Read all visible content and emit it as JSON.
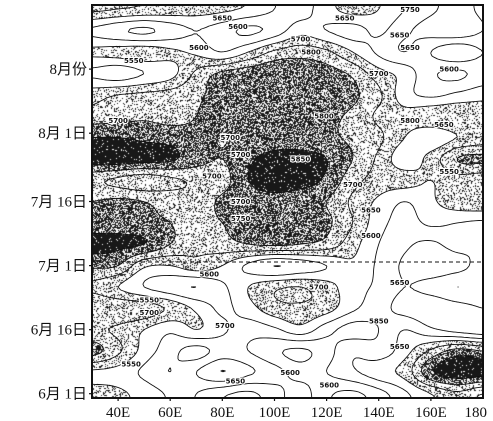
{
  "chart_data": {
    "type": "heatmap",
    "grid": false,
    "xlim": [
      30,
      180
    ],
    "ylim": [
      "05-31",
      "08-31"
    ],
    "xticks": [
      {
        "value": 40,
        "label": "40E"
      },
      {
        "value": 60,
        "label": "60E"
      },
      {
        "value": 80,
        "label": "80E"
      },
      {
        "value": 100,
        "label": "100E"
      },
      {
        "value": 120,
        "label": "120E"
      },
      {
        "value": 140,
        "label": "140E"
      },
      {
        "value": 160,
        "label": "160E"
      },
      {
        "value": 180,
        "label": "180"
      }
    ],
    "yticks": [
      {
        "value": "06-01",
        "label": "6月 1日"
      },
      {
        "value": "06-16",
        "label": "6月 16日"
      },
      {
        "value": "07-01",
        "label": "7月 1日"
      },
      {
        "value": "07-16",
        "label": "7月 16日"
      },
      {
        "value": "08-01",
        "label": "8月 1日"
      },
      {
        "value": "08-16",
        "label": "8月份"
      }
    ],
    "contour_levels": [
      5500,
      5550,
      5600,
      5650,
      5700,
      5750,
      5800,
      5850
    ],
    "shading_levels": [
      5700,
      5800,
      5850
    ],
    "lon": [
      30,
      40,
      50,
      60,
      70,
      80,
      90,
      100,
      110,
      120,
      130,
      140,
      150,
      160,
      170,
      180
    ],
    "dates": [
      "06-01",
      "06-06",
      "06-11",
      "06-16",
      "06-21",
      "06-26",
      "07-01",
      "07-06",
      "07-11",
      "07-16",
      "07-21",
      "07-26",
      "07-31",
      "08-05",
      "08-10",
      "08-15",
      "08-20",
      "08-25",
      "08-30"
    ],
    "values": [
      [
        5720,
        5710,
        5680,
        5640,
        5600,
        5560,
        5540,
        5580,
        5620,
        5560,
        5540,
        5580,
        5640,
        5700,
        5740,
        5700
      ],
      [
        5690,
        5680,
        5640,
        5600,
        5650,
        5700,
        5660,
        5620,
        5580,
        5600,
        5640,
        5680,
        5720,
        5840,
        5880,
        5870
      ],
      [
        5820,
        5760,
        5680,
        5620,
        5580,
        5620,
        5600,
        5560,
        5540,
        5580,
        5640,
        5620,
        5680,
        5760,
        5820,
        5800
      ],
      [
        5760,
        5740,
        5700,
        5660,
        5700,
        5660,
        5620,
        5640,
        5680,
        5620,
        5580,
        5600,
        5650,
        5610,
        5580,
        5560
      ],
      [
        5800,
        5790,
        5780,
        5740,
        5690,
        5640,
        5680,
        5730,
        5740,
        5720,
        5660,
        5620,
        5580,
        5560,
        5580,
        5600
      ],
      [
        5740,
        5700,
        5650,
        5620,
        5600,
        5640,
        5700,
        5740,
        5750,
        5720,
        5670,
        5640,
        5600,
        5620,
        5650,
        5630
      ],
      [
        5810,
        5800,
        5710,
        5700,
        5730,
        5700,
        5640,
        5600,
        5620,
        5650,
        5690,
        5640,
        5590,
        5560,
        5580,
        5620
      ],
      [
        5870,
        5860,
        5850,
        5800,
        5760,
        5780,
        5800,
        5810,
        5800,
        5780,
        5720,
        5650,
        5610,
        5590,
        5620,
        5600
      ],
      [
        5820,
        5830,
        5810,
        5800,
        5780,
        5800,
        5820,
        5830,
        5830,
        5810,
        5750,
        5670,
        5630,
        5660,
        5650,
        5640
      ],
      [
        5800,
        5810,
        5800,
        5780,
        5770,
        5810,
        5820,
        5830,
        5820,
        5800,
        5740,
        5690,
        5650,
        5690,
        5730,
        5740
      ],
      [
        5760,
        5740,
        5720,
        5740,
        5760,
        5780,
        5850,
        5880,
        5870,
        5840,
        5770,
        5730,
        5720,
        5700,
        5730,
        5720
      ],
      [
        5880,
        5880,
        5870,
        5860,
        5820,
        5800,
        5840,
        5870,
        5870,
        5850,
        5800,
        5740,
        5670,
        5720,
        5800,
        5810
      ],
      [
        5850,
        5850,
        5840,
        5830,
        5810,
        5800,
        5810,
        5820,
        5820,
        5810,
        5790,
        5760,
        5700,
        5660,
        5700,
        5720
      ],
      [
        5770,
        5780,
        5790,
        5780,
        5800,
        5820,
        5830,
        5830,
        5820,
        5810,
        5790,
        5740,
        5720,
        5740,
        5750,
        5740
      ],
      [
        5730,
        5750,
        5760,
        5770,
        5790,
        5820,
        5830,
        5840,
        5840,
        5830,
        5810,
        5760,
        5670,
        5640,
        5660,
        5680
      ],
      [
        5640,
        5620,
        5650,
        5680,
        5760,
        5810,
        5830,
        5840,
        5830,
        5820,
        5790,
        5720,
        5680,
        5610,
        5590,
        5620
      ],
      [
        5710,
        5720,
        5730,
        5710,
        5690,
        5650,
        5700,
        5760,
        5780,
        5760,
        5700,
        5640,
        5600,
        5650,
        5690,
        5650
      ],
      [
        5640,
        5610,
        5590,
        5620,
        5650,
        5620,
        5590,
        5620,
        5680,
        5650,
        5630,
        5660,
        5610,
        5580,
        5560,
        5600
      ],
      [
        5760,
        5750,
        5740,
        5730,
        5720,
        5710,
        5690,
        5650,
        5630,
        5680,
        5720,
        5700,
        5650,
        5610,
        5580,
        5610
      ]
    ],
    "contour_labels": [
      {
        "text": "5650",
        "lon": 80,
        "date": "08-28"
      },
      {
        "text": "5600",
        "lon": 86,
        "date": "08-26"
      },
      {
        "text": "5650",
        "lon": 127,
        "date": "08-28"
      },
      {
        "text": "5750",
        "lon": 152,
        "date": "08-30"
      },
      {
        "text": "5650",
        "lon": 148,
        "date": "08-24"
      },
      {
        "text": "5600",
        "lon": 71,
        "date": "08-21"
      },
      {
        "text": "5700",
        "lon": 110,
        "date": "08-23"
      },
      {
        "text": "5550",
        "lon": 46,
        "date": "08-18"
      },
      {
        "text": "5800",
        "lon": 114,
        "date": "08-20"
      },
      {
        "text": "5650",
        "lon": 152,
        "date": "08-21"
      },
      {
        "text": "5700",
        "lon": 140,
        "date": "08-15"
      },
      {
        "text": "5600",
        "lon": 167,
        "date": "08-16"
      },
      {
        "text": "5700",
        "lon": 40,
        "date": "08-04"
      },
      {
        "text": "5700",
        "lon": 83,
        "date": "07-31"
      },
      {
        "text": "5800",
        "lon": 119,
        "date": "08-05"
      },
      {
        "text": "5800",
        "lon": 152,
        "date": "08-04"
      },
      {
        "text": "5650",
        "lon": 165,
        "date": "08-03"
      },
      {
        "text": "5700",
        "lon": 87,
        "date": "07-27"
      },
      {
        "text": "5850",
        "lon": 110,
        "date": "07-26"
      },
      {
        "text": "5700",
        "lon": 76,
        "date": "07-22"
      },
      {
        "text": "5700",
        "lon": 87,
        "date": "07-16"
      },
      {
        "text": "5700",
        "lon": 130,
        "date": "07-20"
      },
      {
        "text": "5750",
        "lon": 87,
        "date": "07-12"
      },
      {
        "text": "5650",
        "lon": 137,
        "date": "07-14"
      },
      {
        "text": "5600",
        "lon": 137,
        "date": "07-08"
      },
      {
        "text": "5550",
        "lon": 167,
        "date": "07-23"
      },
      {
        "text": "5600",
        "lon": 75,
        "date": "06-29"
      },
      {
        "text": "5700",
        "lon": 117,
        "date": "06-26"
      },
      {
        "text": "5650",
        "lon": 148,
        "date": "06-27"
      },
      {
        "text": "5550",
        "lon": 52,
        "date": "06-23"
      },
      {
        "text": "5700",
        "lon": 52,
        "date": "06-20"
      },
      {
        "text": "5700",
        "lon": 81,
        "date": "06-17"
      },
      {
        "text": "5850",
        "lon": 140,
        "date": "06-18"
      },
      {
        "text": "5650",
        "lon": 148,
        "date": "06-12"
      },
      {
        "text": "5550",
        "lon": 45,
        "date": "06-08"
      },
      {
        "text": "5600",
        "lon": 106,
        "date": "06-06"
      },
      {
        "text": "5650",
        "lon": 85,
        "date": "06-04"
      },
      {
        "text": "5600",
        "lon": 121,
        "date": "06-03"
      }
    ]
  }
}
